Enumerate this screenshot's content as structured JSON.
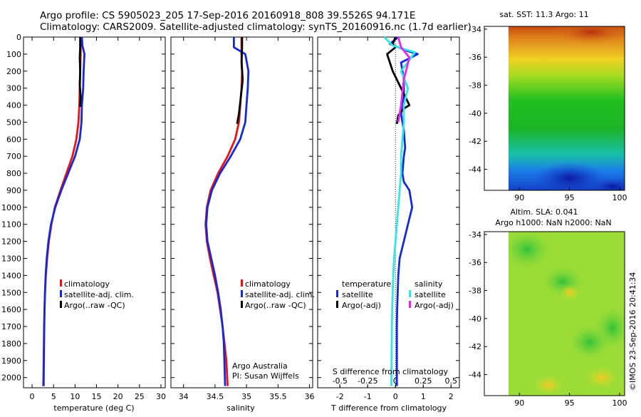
{
  "header": {
    "line1": "Argo profile: CS 5905023_205 17-Sep-2016 20160918_808 39.5526S 94.171E",
    "line2": "Climatology: CARS2009. Satellite-adjusted climatology: synTS_20160916.nc (1.7d earlier)"
  },
  "colors": {
    "climatology": "#ee1111",
    "satellite": "#1428dc",
    "argo": "#000000",
    "sat_salinity": "#33e5e5",
    "argo_salinity": "#e629e6"
  },
  "panel_labels": {
    "temperature_x": "temperature (deg C)",
    "salinity_x": "salinity",
    "diff_x": "T difference from climatology",
    "diff_top": "S difference from climatology",
    "argo_note1": "Argo Australia",
    "argo_note2": "PI: Susan Wijffels",
    "legend_clim": "climatology",
    "legend_sat": "satellite-adj. clim.",
    "legend_argo": "Argo(..raw -QC)",
    "diff_head_t": "temperature",
    "diff_head_s": "salinity",
    "diff_sat_t": "satellite",
    "diff_argo_t": "Argo(-adj)",
    "diff_sat_s": "satellite",
    "diff_argo_s": "Argo(-adj)",
    "map1_title": "sat. SST: 11.3 Argo: 11",
    "map2_title1": "Altim. SLA: 0.041",
    "map2_title2": "Argo h1000: NaN h2000: NaN",
    "credit": "©IMOS 23-Sep-2016 20:41:34"
  },
  "chart_data": [
    {
      "type": "line",
      "xlabel": "temperature (deg C)",
      "ylim": [
        2060,
        0
      ],
      "xlim": [
        -2,
        31
      ],
      "x_ticks": [
        0,
        5,
        10,
        15,
        20,
        25,
        30
      ],
      "y_ticks": [
        0,
        100,
        200,
        300,
        400,
        500,
        600,
        700,
        800,
        900,
        1000,
        1100,
        1200,
        1300,
        1400,
        1500,
        1600,
        1700,
        1800,
        1900,
        2000
      ],
      "series": [
        {
          "name": "climatology",
          "color": "#ee1111",
          "x": [
            11.3,
            11.3,
            11.2,
            11.1,
            11.0,
            10.8,
            10.3,
            9.4,
            8.0,
            6.6,
            5.3,
            4.5,
            3.9,
            3.5,
            3.2,
            3.0,
            2.9,
            2.8,
            2.75,
            2.7,
            2.65,
            2.6
          ],
          "y": [
            0,
            100,
            200,
            300,
            400,
            500,
            600,
            700,
            800,
            900,
            1000,
            1100,
            1200,
            1300,
            1400,
            1500,
            1600,
            1700,
            1800,
            1900,
            2000,
            2050
          ]
        },
        {
          "name": "satellite-adj. clim.",
          "color": "#1428dc",
          "x": [
            11.6,
            11.7,
            12.2,
            12.0,
            11.9,
            11.6,
            11.5,
            11.1,
            10.0,
            8.4,
            6.8,
            5.4,
            4.4,
            3.8,
            3.4,
            3.15,
            3.0,
            2.9,
            2.85,
            2.8,
            2.75,
            2.7
          ],
          "y": [
            0,
            50,
            100,
            200,
            300,
            400,
            500,
            600,
            700,
            800,
            900,
            1000,
            1100,
            1200,
            1300,
            1400,
            1500,
            1600,
            1700,
            1800,
            1900,
            2050
          ]
        },
        {
          "name": "Argo(..raw -QC)",
          "color": "#000000",
          "x": [
            11.2,
            11.2,
            11.1,
            11.2,
            11.1,
            11.3,
            11.2
          ],
          "y": [
            0,
            60,
            120,
            200,
            280,
            350,
            410
          ]
        }
      ],
      "legend": [
        "climatology",
        "satellite-adj. clim.",
        "Argo(..raw -QC)"
      ]
    },
    {
      "type": "line",
      "xlabel": "salinity",
      "ylim": [
        2060,
        0
      ],
      "xlim": [
        33.8,
        36.05
      ],
      "x_ticks": [
        34,
        34.5,
        35,
        35.5,
        36
      ],
      "x_tick_labels": [
        "34",
        "34.5",
        "35",
        "35.5",
        "36"
      ],
      "series": [
        {
          "name": "climatology",
          "color": "#ee1111",
          "x": [
            34.92,
            34.92,
            34.93,
            34.92,
            34.9,
            34.88,
            34.82,
            34.7,
            34.55,
            34.43,
            34.37,
            34.35,
            34.37,
            34.42,
            34.48,
            34.54,
            34.58,
            34.62,
            34.65,
            34.68,
            34.7
          ],
          "y": [
            0,
            100,
            200,
            300,
            400,
            500,
            600,
            700,
            800,
            900,
            1000,
            1100,
            1200,
            1300,
            1400,
            1500,
            1600,
            1700,
            1800,
            1900,
            2050
          ]
        },
        {
          "name": "satellite-adj. clim.",
          "color": "#1428dc",
          "x": [
            34.8,
            34.8,
            34.98,
            35.03,
            35.02,
            35.0,
            34.98,
            34.9,
            34.75,
            34.58,
            34.45,
            34.38,
            34.36,
            34.38,
            34.44,
            34.5,
            34.55,
            34.59,
            34.62,
            34.64,
            34.66
          ],
          "y": [
            0,
            60,
            100,
            200,
            300,
            400,
            500,
            600,
            700,
            800,
            900,
            1000,
            1100,
            1200,
            1300,
            1400,
            1500,
            1600,
            1700,
            1800,
            2050
          ]
        },
        {
          "name": "Argo(..raw -QC)",
          "color": "#000000",
          "x": [
            34.93,
            34.93,
            34.92,
            34.94,
            34.91,
            34.88,
            34.85
          ],
          "y": [
            0,
            60,
            150,
            250,
            350,
            450,
            510
          ]
        }
      ],
      "legend": [
        "climatology",
        "satellite-adj. clim.",
        "Argo(..raw -QC)"
      ]
    },
    {
      "type": "line",
      "xlabel": "T difference from climatology",
      "top_label": "S difference from climatology",
      "ylim": [
        2060,
        0
      ],
      "xlim": [
        -2.8,
        2.3
      ],
      "x_ticks": [
        -2,
        -1,
        0,
        1,
        2
      ],
      "top_ticks": [
        -0.5,
        -0.25,
        0,
        0.25,
        0.5
      ],
      "top_tick_labels": [
        "-0.5",
        "-0.25",
        "0",
        "0.25",
        "0.5"
      ],
      "series": [
        {
          "name": "temperature satellite",
          "color": "#1428dc",
          "x": [
            0.1,
            -0.2,
            0.4,
            0.8,
            0.2,
            0.3,
            0.3,
            0.2,
            0.3,
            0.35,
            0.3,
            0.25,
            0.3,
            0.5,
            0.6,
            0.45,
            0.3,
            0.15,
            0.1,
            0.08,
            0.06,
            0.05,
            0.05,
            0.05,
            0.05,
            0.05
          ],
          "y": [
            0,
            40,
            80,
            100,
            150,
            250,
            350,
            450,
            550,
            650,
            700,
            800,
            850,
            900,
            1000,
            1100,
            1200,
            1300,
            1400,
            1500,
            1600,
            1700,
            1800,
            1900,
            2000,
            2050
          ]
        },
        {
          "name": "temperature Argo(-adj)",
          "color": "#000000",
          "x": [
            0.0,
            -0.1,
            0.0,
            -0.3,
            -0.1,
            0.2,
            0.5,
            0.3,
            0.1,
            0.05
          ],
          "y": [
            0,
            40,
            60,
            100,
            200,
            300,
            400,
            420,
            460,
            510
          ]
        },
        {
          "name": "salinity satellite",
          "color": "#33e5e5",
          "x": [
            -0.4,
            -0.1,
            0.7,
            0.2,
            0.45,
            0.3,
            0.3,
            0.2,
            0.2,
            0.15,
            0.1,
            0.05,
            0.0,
            -0.05,
            -0.08,
            -0.1,
            -0.12,
            -0.13,
            -0.14,
            -0.15
          ],
          "y": [
            0,
            50,
            90,
            200,
            300,
            400,
            500,
            700,
            800,
            900,
            1000,
            1100,
            1200,
            1300,
            1400,
            1500,
            1600,
            1700,
            1900,
            2050
          ]
        },
        {
          "name": "salinity Argo(-adj)",
          "color": "#e629e6",
          "x": [
            0.1,
            0.2,
            0.5,
            0.3,
            0.2,
            0.1
          ],
          "y": [
            0,
            60,
            120,
            250,
            400,
            500
          ]
        }
      ]
    },
    {
      "type": "heatmap",
      "title": "sat. SST: 11.3 Argo: 11",
      "xlim": [
        86.5,
        100.5
      ],
      "ylim": [
        -45.5,
        -33.8
      ],
      "x_ticks": [
        90,
        95,
        100
      ],
      "y_ticks": [
        -34,
        -36,
        -38,
        -40,
        -42,
        -44
      ]
    },
    {
      "type": "heatmap",
      "title": "Altim. SLA: 0.041 / Argo h1000: NaN h2000: NaN",
      "xlim": [
        86.5,
        100.5
      ],
      "ylim": [
        -45.5,
        -33.8
      ],
      "x_ticks": [
        90,
        95,
        100
      ],
      "y_ticks": [
        -34,
        -36,
        -38,
        -40,
        -42,
        -44
      ]
    }
  ]
}
